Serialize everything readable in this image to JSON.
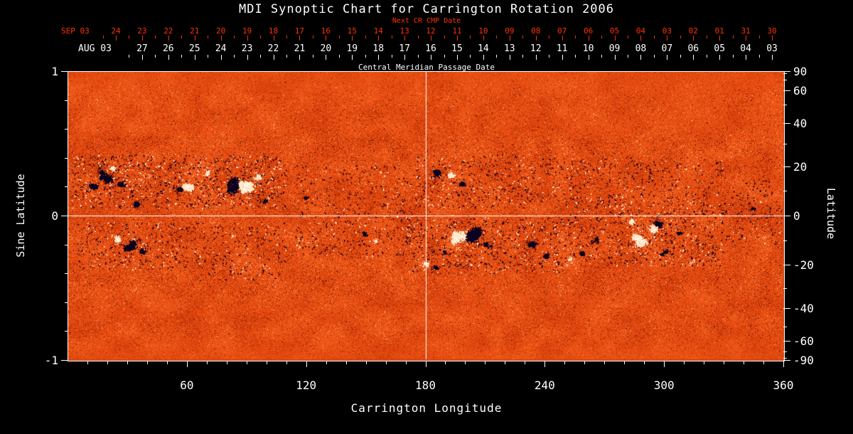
{
  "title": "MDI Synoptic Chart for Carrington Rotation 2006",
  "colors": {
    "background": "#000000",
    "axis_text": "#ffffff",
    "next_cr_axis": "#ff3200",
    "negative_polarity": "#000028",
    "positive_polarity": "#fff8e6",
    "quiet_sun": "#e8501a"
  },
  "top_axes": {
    "next_cr_label": "Next CR CMP Date",
    "cmp_label": "Central Meridian Passage Date",
    "red": {
      "month_label": "SEP 03",
      "dates": [
        "24",
        "23",
        "22",
        "21",
        "20",
        "19",
        "18",
        "17",
        "16",
        "15",
        "14",
        "13",
        "12",
        "11",
        "10",
        "09",
        "08",
        "07",
        "06",
        "05",
        "04",
        "03",
        "02",
        "01",
        "31",
        "30"
      ],
      "right_lon": 354.3,
      "step_deg": 13.2
    },
    "white": {
      "month_label": "AUG 03",
      "dates": [
        "27",
        "26",
        "25",
        "24",
        "23",
        "22",
        "21",
        "20",
        "19",
        "18",
        "17",
        "16",
        "15",
        "14",
        "13",
        "12",
        "11",
        "10",
        "09",
        "08",
        "07",
        "06",
        "05",
        "04",
        "03"
      ],
      "right_lon": 354.3,
      "step_deg": 13.2
    }
  },
  "chart_data": {
    "type": "heatmap",
    "title": "MDI Synoptic Chart for Carrington Rotation 2006",
    "colormap": "solar magnetogram: dark navy = negative field, orange-red = quiet sun, white = positive field",
    "xlim": [
      0,
      360
    ],
    "ylim_sine": [
      -1,
      1
    ],
    "grid": {
      "vertical_lon": 180,
      "horizontal_sinlat": 0
    },
    "x_axis": {
      "title": "Carrington Longitude",
      "major_ticks": [
        60,
        120,
        180,
        240,
        300,
        360
      ],
      "minor_step": 10
    },
    "y_axis_left": {
      "title": "Sine Latitude",
      "ticks": [
        1,
        0,
        -1
      ],
      "minor_ticks": [
        0.8,
        0.6,
        0.4,
        0.2,
        -0.2,
        -0.4,
        -0.6,
        -0.8
      ]
    },
    "y_axis_right": {
      "title": "Latitude",
      "ticks": [
        90,
        60,
        40,
        20,
        0,
        -20,
        -40,
        -60,
        -90
      ],
      "minor_ticks": [
        80,
        70,
        50,
        30,
        10,
        -10,
        -30,
        -50,
        -70,
        -80
      ]
    },
    "palette_stops": [
      [
        0.0,
        2,
        0,
        40
      ],
      [
        0.08,
        25,
        2,
        18
      ],
      [
        0.22,
        110,
        18,
        2
      ],
      [
        0.38,
        190,
        48,
        6
      ],
      [
        0.55,
        232,
        76,
        16
      ],
      [
        0.72,
        248,
        110,
        40
      ],
      [
        0.86,
        254,
        165,
        100
      ],
      [
        1.0,
        255,
        252,
        235
      ]
    ],
    "active_regions": [
      {
        "lon": 17,
        "sinlat": 0.28,
        "r_deg": 4.5,
        "polarity": "negative",
        "intensity": 1.0
      },
      {
        "lon": 22,
        "sinlat": 0.33,
        "r_deg": 2.5,
        "polarity": "positive",
        "intensity": 0.6
      },
      {
        "lon": 12,
        "sinlat": 0.2,
        "r_deg": 3.0,
        "polarity": "negative",
        "intensity": 0.6
      },
      {
        "lon": 27,
        "sinlat": 0.22,
        "r_deg": 2.5,
        "polarity": "negative",
        "intensity": 0.5
      },
      {
        "lon": 34,
        "sinlat": 0.08,
        "r_deg": 3.0,
        "polarity": "negative",
        "intensity": 0.6
      },
      {
        "lon": 56,
        "sinlat": 0.18,
        "r_deg": 2.5,
        "polarity": "negative",
        "intensity": 0.9
      },
      {
        "lon": 60,
        "sinlat": 0.19,
        "r_deg": 3.5,
        "polarity": "positive",
        "intensity": 1.0
      },
      {
        "lon": 84,
        "sinlat": 0.21,
        "r_deg": 5.0,
        "polarity": "negative",
        "intensity": 1.0
      },
      {
        "lon": 90,
        "sinlat": 0.2,
        "r_deg": 5.0,
        "polarity": "positive",
        "intensity": 1.0
      },
      {
        "lon": 96,
        "sinlat": 0.26,
        "r_deg": 2.5,
        "polarity": "positive",
        "intensity": 0.5
      },
      {
        "lon": 99,
        "sinlat": 0.1,
        "r_deg": 2.0,
        "polarity": "negative",
        "intensity": 0.4
      },
      {
        "lon": 25,
        "sinlat": -0.17,
        "r_deg": 2.5,
        "polarity": "positive",
        "intensity": 0.8
      },
      {
        "lon": 31,
        "sinlat": -0.22,
        "r_deg": 4.0,
        "polarity": "negative",
        "intensity": 0.9
      },
      {
        "lon": 38,
        "sinlat": -0.25,
        "r_deg": 2.5,
        "polarity": "negative",
        "intensity": 0.5
      },
      {
        "lon": 70,
        "sinlat": 0.3,
        "r_deg": 2.0,
        "polarity": "positive",
        "intensity": 0.45
      },
      {
        "lon": 120,
        "sinlat": 0.12,
        "r_deg": 1.8,
        "polarity": "negative",
        "intensity": 0.35
      },
      {
        "lon": 149,
        "sinlat": -0.13,
        "r_deg": 2.0,
        "polarity": "negative",
        "intensity": 0.5
      },
      {
        "lon": 155,
        "sinlat": -0.18,
        "r_deg": 1.8,
        "polarity": "positive",
        "intensity": 0.4
      },
      {
        "lon": 186,
        "sinlat": 0.3,
        "r_deg": 3.5,
        "polarity": "negative",
        "intensity": 0.9
      },
      {
        "lon": 193,
        "sinlat": 0.28,
        "r_deg": 3.0,
        "polarity": "positive",
        "intensity": 0.8
      },
      {
        "lon": 199,
        "sinlat": 0.22,
        "r_deg": 2.5,
        "polarity": "negative",
        "intensity": 0.5
      },
      {
        "lon": 197,
        "sinlat": -0.15,
        "r_deg": 5.5,
        "polarity": "positive",
        "intensity": 1.0
      },
      {
        "lon": 205,
        "sinlat": -0.13,
        "r_deg": 5.0,
        "polarity": "negative",
        "intensity": 1.0
      },
      {
        "lon": 211,
        "sinlat": -0.2,
        "r_deg": 3.0,
        "polarity": "negative",
        "intensity": 0.7
      },
      {
        "lon": 190,
        "sinlat": -0.26,
        "r_deg": 2.0,
        "polarity": "negative",
        "intensity": 0.5
      },
      {
        "lon": 180,
        "sinlat": -0.34,
        "r_deg": 2.0,
        "polarity": "positive",
        "intensity": 0.7
      },
      {
        "lon": 185,
        "sinlat": -0.36,
        "r_deg": 2.0,
        "polarity": "negative",
        "intensity": 0.6
      },
      {
        "lon": 232,
        "sinlat": -0.2,
        "r_deg": 3.5,
        "polarity": "negative",
        "intensity": 0.6
      },
      {
        "lon": 241,
        "sinlat": -0.28,
        "r_deg": 2.5,
        "polarity": "negative",
        "intensity": 0.5
      },
      {
        "lon": 253,
        "sinlat": -0.31,
        "r_deg": 2.0,
        "polarity": "positive",
        "intensity": 0.8
      },
      {
        "lon": 259,
        "sinlat": -0.27,
        "r_deg": 3.0,
        "polarity": "negative",
        "intensity": 0.7
      },
      {
        "lon": 266,
        "sinlat": -0.17,
        "r_deg": 2.0,
        "polarity": "negative",
        "intensity": 0.4
      },
      {
        "lon": 288,
        "sinlat": -0.17,
        "r_deg": 5.0,
        "polarity": "positive",
        "intensity": 1.0
      },
      {
        "lon": 295,
        "sinlat": -0.1,
        "r_deg": 3.5,
        "polarity": "positive",
        "intensity": 0.8
      },
      {
        "lon": 298,
        "sinlat": -0.05,
        "r_deg": 3.5,
        "polarity": "negative",
        "intensity": 0.9
      },
      {
        "lon": 284,
        "sinlat": -0.04,
        "r_deg": 2.0,
        "polarity": "positive",
        "intensity": 0.5
      },
      {
        "lon": 301,
        "sinlat": -0.25,
        "r_deg": 2.5,
        "polarity": "negative",
        "intensity": 0.5
      },
      {
        "lon": 308,
        "sinlat": -0.12,
        "r_deg": 2.0,
        "polarity": "negative",
        "intensity": 0.4
      },
      {
        "lon": 345,
        "sinlat": 0.05,
        "r_deg": 1.5,
        "polarity": "negative",
        "intensity": 0.4
      }
    ],
    "mottle_zones": [
      {
        "lon": [
          2,
          110
        ],
        "sinlat": [
          0.05,
          0.42
        ],
        "dark": 0.6,
        "bright": 0.5
      },
      {
        "lon": [
          5,
          60
        ],
        "sinlat": [
          -0.38,
          -0.05
        ],
        "dark": 0.5,
        "bright": 0.25
      },
      {
        "lon": [
          60,
          110
        ],
        "sinlat": [
          -0.45,
          -0.05
        ],
        "dark": 0.35,
        "bright": 0.15
      },
      {
        "lon": [
          115,
          175
        ],
        "sinlat": [
          -0.3,
          0.35
        ],
        "dark": 0.3,
        "bright": 0.15
      },
      {
        "lon": [
          175,
          235
        ],
        "sinlat": [
          0.05,
          0.42
        ],
        "dark": 0.45,
        "bright": 0.3
      },
      {
        "lon": [
          170,
          250
        ],
        "sinlat": [
          -0.4,
          -0.02
        ],
        "dark": 0.55,
        "bright": 0.35
      },
      {
        "lon": [
          250,
          330
        ],
        "sinlat": [
          -0.35,
          0.1
        ],
        "dark": 0.5,
        "bright": 0.35
      },
      {
        "lon": [
          235,
          330
        ],
        "sinlat": [
          0.1,
          0.4
        ],
        "dark": 0.35,
        "bright": 0.15
      },
      {
        "lon": [
          330,
          360
        ],
        "sinlat": [
          -0.2,
          0.25
        ],
        "dark": 0.3,
        "bright": 0.1
      }
    ]
  }
}
